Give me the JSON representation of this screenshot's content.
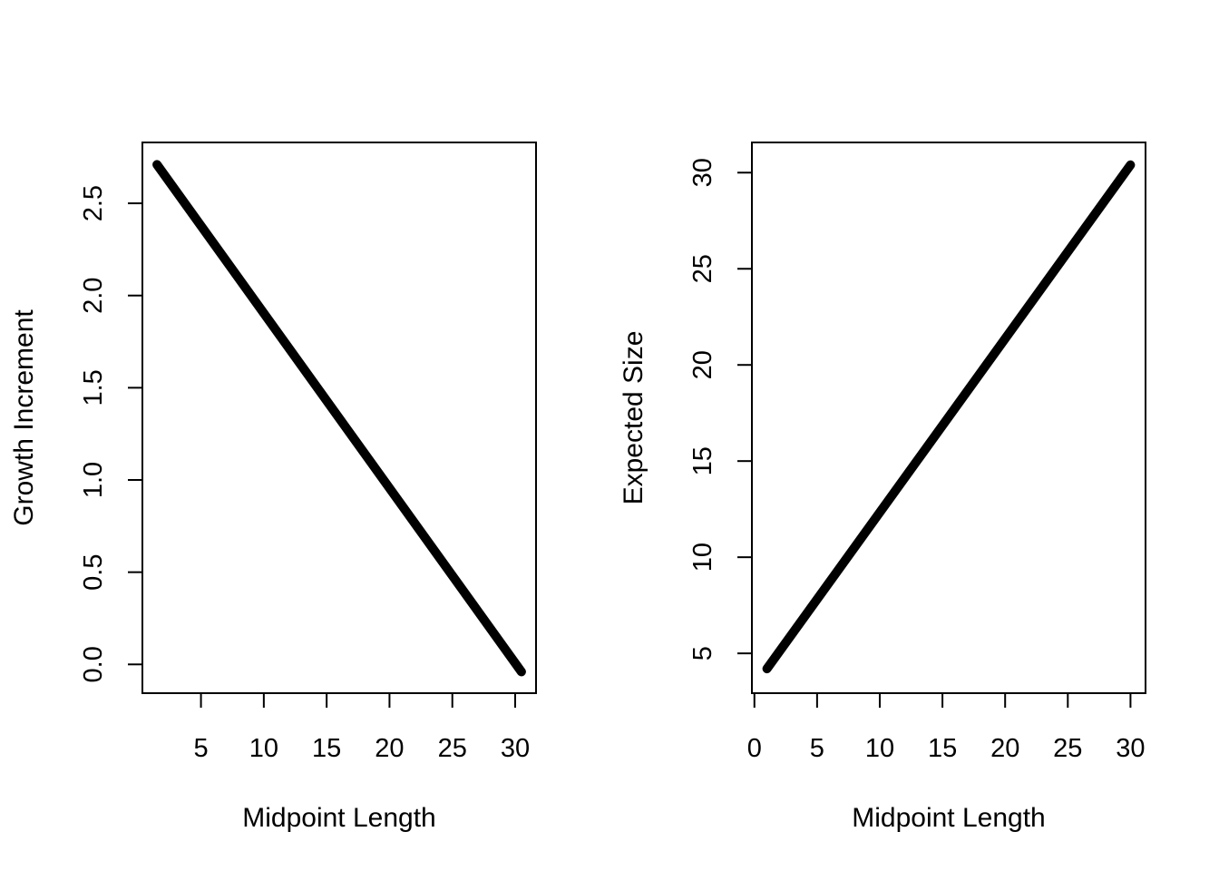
{
  "chart_data": [
    {
      "type": "line",
      "title": "",
      "xlabel": "Midpoint Length",
      "ylabel": "Growth Increment",
      "xlim": [
        0.34,
        31.66
      ],
      "ylim": [
        -0.156,
        2.83
      ],
      "xticks": [
        5,
        10,
        15,
        20,
        25,
        30
      ],
      "xtick_labels": [
        "5",
        "10",
        "15",
        "20",
        "25",
        "30"
      ],
      "yticks": [
        0.0,
        0.5,
        1.0,
        1.5,
        2.0,
        2.5
      ],
      "ytick_labels": [
        "0.0",
        "0.5",
        "1.0",
        "1.5",
        "2.0",
        "2.5"
      ],
      "grid": false,
      "legend": "none",
      "line_color": "#000000",
      "series": [
        {
          "x": [
            1.5,
            30.5
          ],
          "y": [
            2.71,
            -0.04
          ]
        }
      ]
    },
    {
      "type": "line",
      "title": "",
      "xlabel": "Midpoint Length",
      "ylabel": "Expected Size",
      "xlim": [
        -0.2,
        31.2
      ],
      "ylim": [
        2.93,
        31.57
      ],
      "xticks": [
        0,
        5,
        10,
        15,
        20,
        25,
        30
      ],
      "xtick_labels": [
        "0",
        "5",
        "10",
        "15",
        "20",
        "25",
        "30"
      ],
      "yticks": [
        5,
        10,
        15,
        20,
        25,
        30
      ],
      "ytick_labels": [
        "5",
        "10",
        "15",
        "20",
        "25",
        "30"
      ],
      "grid": false,
      "legend": "none",
      "line_color": "#000000",
      "series": [
        {
          "x": [
            1,
            30
          ],
          "y": [
            4.2,
            30.4
          ]
        }
      ]
    }
  ]
}
